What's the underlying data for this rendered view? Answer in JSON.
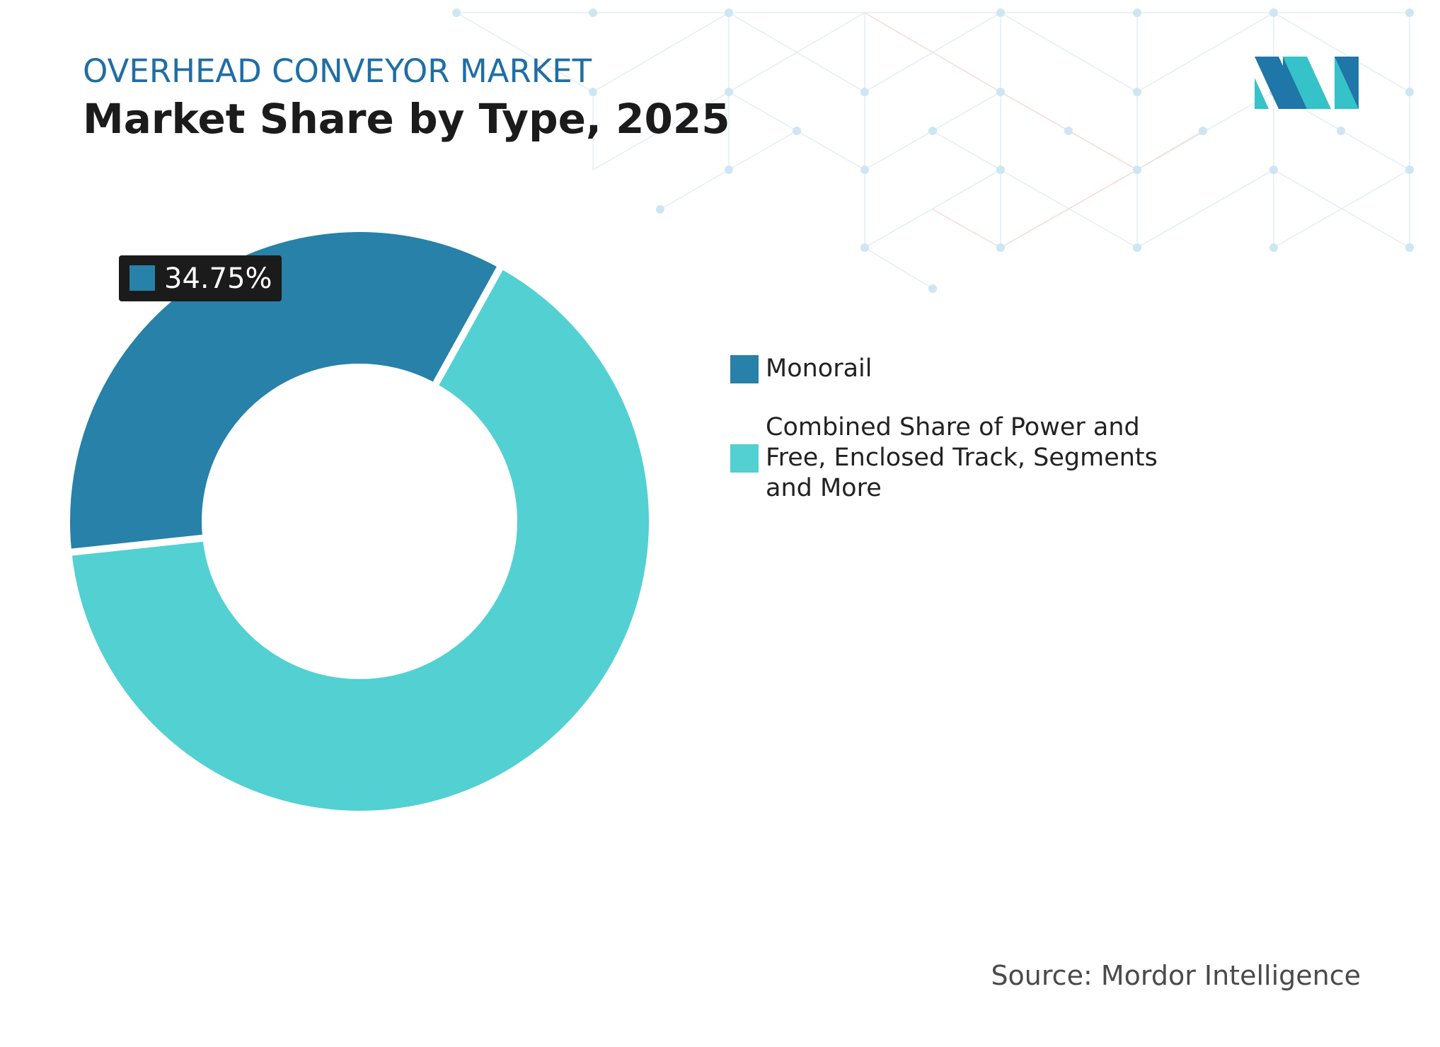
{
  "header": {
    "eyebrow": "OVERHEAD CONVEYOR MARKET",
    "title": "Market Share by Type, 2025"
  },
  "colors": {
    "eyebrow": "#1f6ea5",
    "monorail": "#2781a8",
    "other": "#52d0d2",
    "label_bg": "#1b1b1b",
    "logo_dark": "#1f76a8",
    "logo_light": "#35c2c9"
  },
  "chart_data": {
    "type": "pie",
    "variant": "donut",
    "title": "Market Share by Type, 2025",
    "categories": [
      "Monorail",
      "Combined Share of Power and Free, Enclosed Track, Segments and More"
    ],
    "values": [
      34.75,
      65.25
    ],
    "data_labels": [
      "34.75%"
    ],
    "legend_position": "right",
    "unit": "%"
  },
  "legend": {
    "items": [
      {
        "label": "Monorail",
        "color": "#2781a8"
      },
      {
        "label": "Combined Share of Power and Free, Enclosed Track, Segments and More",
        "color": "#52d0d2"
      }
    ]
  },
  "footer": {
    "source": "Source: Mordor Intelligence"
  },
  "logo": {
    "icon": "mordor-logo-icon"
  }
}
